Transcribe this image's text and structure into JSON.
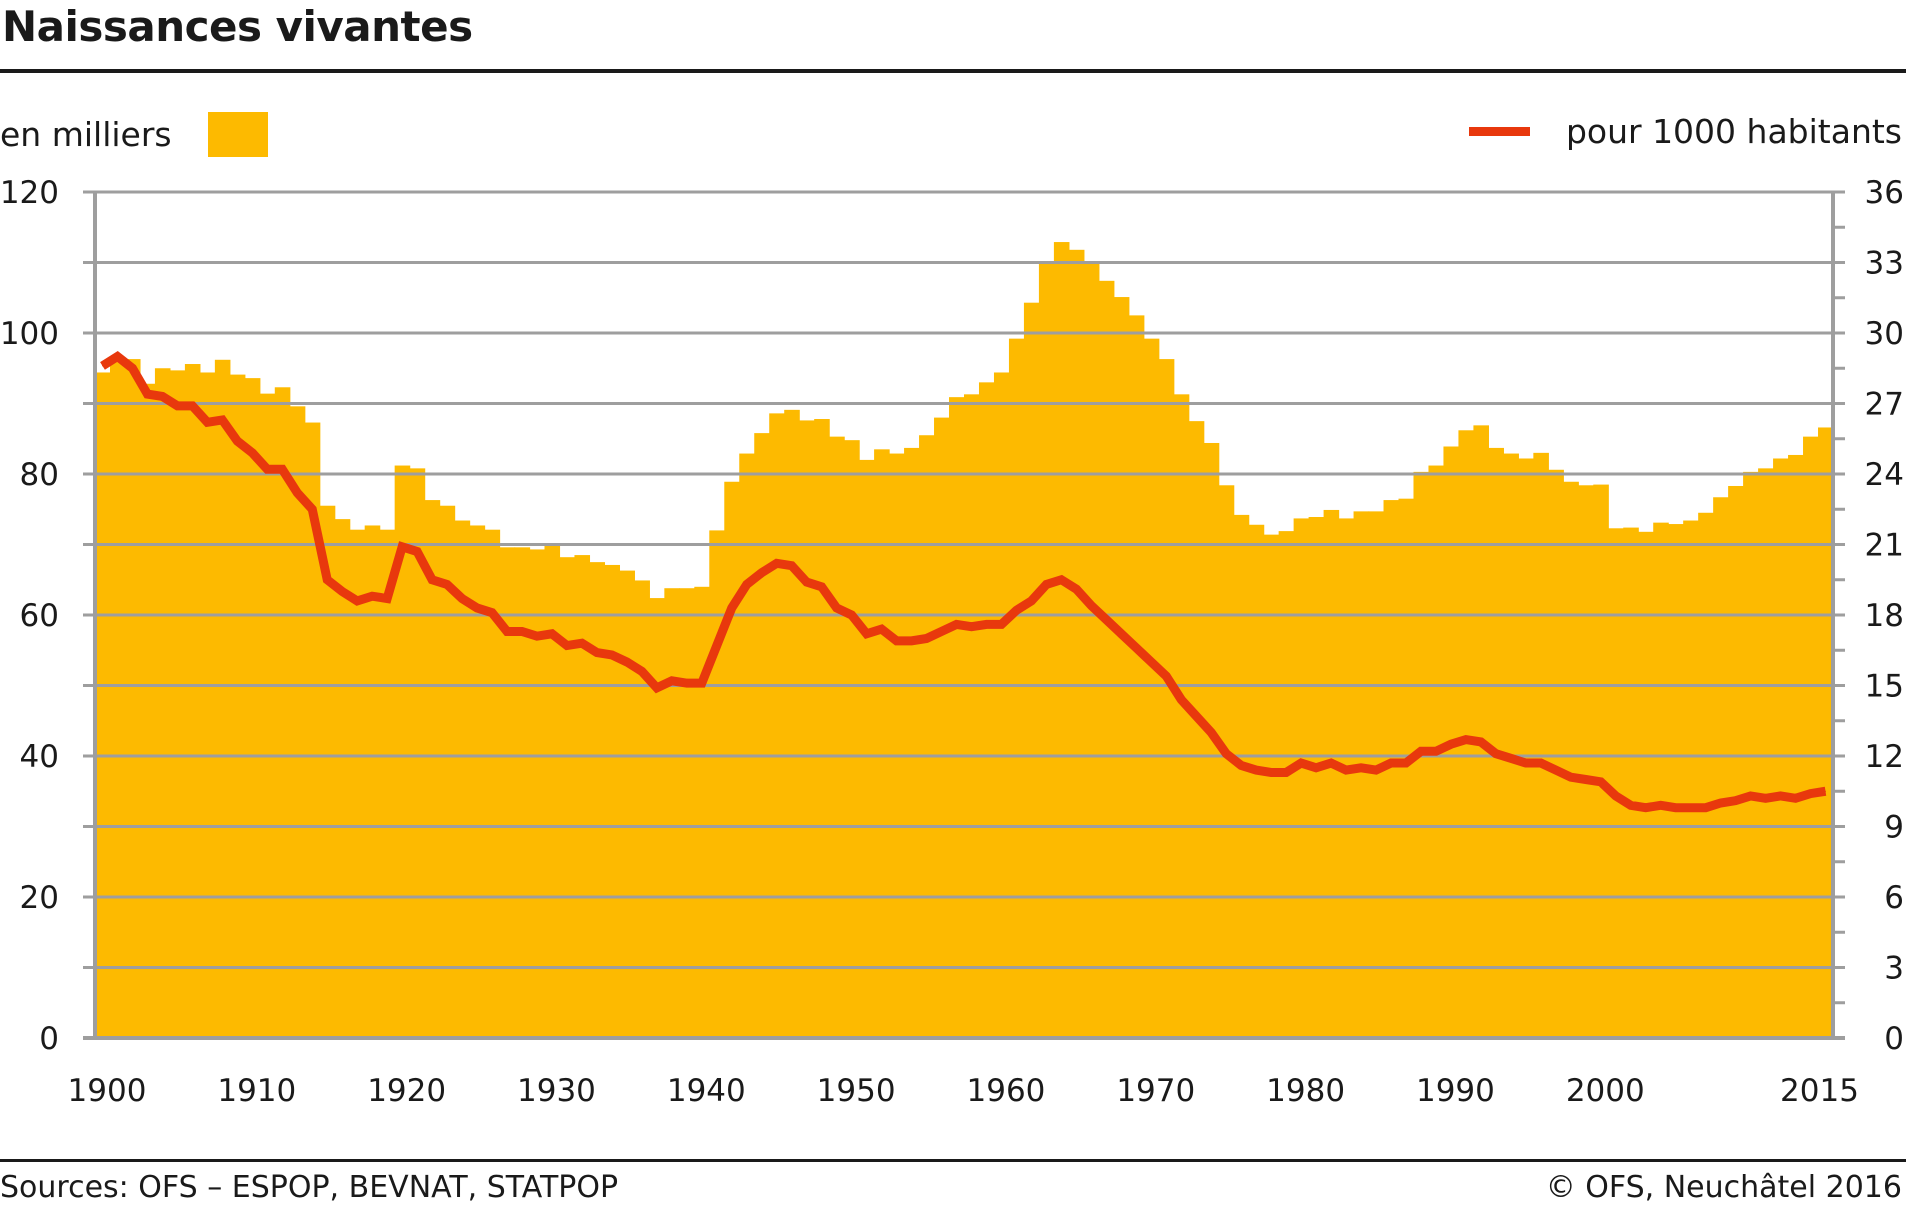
{
  "header": {
    "title": "Naissances vivantes"
  },
  "legend": {
    "bars_label": "en milliers",
    "line_label": "pour 1000 habitants"
  },
  "footer": {
    "sources": "Sources: OFS – ESPOP, BEVNAT, STATPOP",
    "copyright": "© OFS, Neuchâtel 2016"
  },
  "colors": {
    "bars": "#FDBA00",
    "line": "#E8380D",
    "grid": "#9E9E9E",
    "text": "#1a1a1a"
  },
  "chart_data": {
    "type": "bar",
    "title": "Naissances vivantes",
    "xlabel": "",
    "ylabel": "en milliers",
    "y2label": "pour 1000 habitants",
    "x_range": [
      1900,
      2015
    ],
    "ylim": [
      0,
      120
    ],
    "y2lim": [
      0,
      36
    ],
    "grid": true,
    "legend_position": "top",
    "x_tick_labels": [
      "1900",
      "1910",
      "1920",
      "1930",
      "1940",
      "1950",
      "1960",
      "1970",
      "1980",
      "1990",
      "2000",
      "2015"
    ],
    "y_tick_labels": [
      "0",
      "20",
      "40",
      "60",
      "80",
      "100",
      "120"
    ],
    "y2_tick_labels": [
      "0",
      "3",
      "6",
      "9",
      "12",
      "15",
      "18",
      "21",
      "24",
      "27",
      "30",
      "33",
      "36"
    ],
    "series": [
      {
        "name": "en milliers",
        "type": "bar",
        "axis": "left",
        "start_year": 1900,
        "values": [
          94.4,
          96.6,
          96.3,
          92.8,
          95.0,
          94.7,
          95.6,
          94.4,
          96.2,
          94.1,
          93.6,
          91.4,
          92.3,
          89.6,
          87.3,
          75.5,
          73.6,
          72.1,
          72.7,
          72.1,
          81.2,
          80.8,
          76.3,
          75.5,
          73.4,
          72.7,
          72.1,
          69.6,
          69.6,
          69.3,
          69.9,
          68.2,
          68.5,
          67.5,
          67.1,
          66.3,
          64.9,
          62.4,
          63.8,
          63.8,
          64.0,
          72.0,
          78.9,
          82.9,
          85.8,
          88.6,
          89.1,
          87.6,
          87.8,
          85.3,
          84.8,
          82.0,
          83.5,
          82.9,
          83.7,
          85.5,
          88.0,
          90.9,
          91.3,
          93.0,
          94.4,
          99.2,
          104.3,
          110.0,
          112.9,
          111.8,
          110.0,
          107.4,
          105.1,
          102.5,
          99.2,
          96.3,
          91.3,
          87.5,
          84.4,
          78.4,
          74.2,
          72.8,
          71.4,
          71.9,
          73.7,
          73.9,
          74.9,
          73.7,
          74.7,
          74.7,
          76.3,
          76.5,
          80.3,
          81.2,
          83.9,
          86.2,
          86.9,
          83.7,
          82.9,
          82.2,
          83.0,
          80.6,
          78.9,
          78.4,
          78.5,
          72.3,
          72.4,
          71.8,
          73.1,
          72.9,
          73.4,
          74.5,
          76.7,
          78.3,
          80.3,
          80.8,
          82.2,
          82.7,
          85.3,
          86.6
        ]
      },
      {
        "name": "pour 1000 habitants",
        "type": "line",
        "axis": "right",
        "start_year": 1900,
        "values": [
          28.6,
          29.0,
          28.5,
          27.4,
          27.3,
          26.9,
          26.9,
          26.2,
          26.3,
          25.4,
          24.9,
          24.2,
          24.2,
          23.2,
          22.5,
          19.5,
          19.0,
          18.6,
          18.8,
          18.7,
          20.9,
          20.7,
          19.5,
          19.3,
          18.7,
          18.3,
          18.1,
          17.3,
          17.3,
          17.1,
          17.2,
          16.7,
          16.8,
          16.4,
          16.3,
          16.0,
          15.6,
          14.9,
          15.2,
          15.1,
          15.1,
          16.7,
          18.3,
          19.3,
          19.8,
          20.2,
          20.1,
          19.4,
          19.2,
          18.3,
          18.0,
          17.2,
          17.4,
          16.9,
          16.9,
          17.0,
          17.3,
          17.6,
          17.5,
          17.6,
          17.6,
          18.2,
          18.6,
          19.3,
          19.5,
          19.1,
          18.4,
          17.8,
          17.2,
          16.6,
          16.0,
          15.4,
          14.4,
          13.7,
          13.0,
          12.1,
          11.6,
          11.4,
          11.3,
          11.3,
          11.7,
          11.5,
          11.7,
          11.4,
          11.5,
          11.4,
          11.7,
          11.7,
          12.2,
          12.2,
          12.5,
          12.7,
          12.6,
          12.1,
          11.9,
          11.7,
          11.7,
          11.4,
          11.1,
          11.0,
          10.9,
          10.3,
          9.9,
          9.8,
          9.9,
          9.8,
          9.8,
          9.8,
          10.0,
          10.1,
          10.3,
          10.2,
          10.3,
          10.2,
          10.4,
          10.5
        ]
      }
    ]
  }
}
